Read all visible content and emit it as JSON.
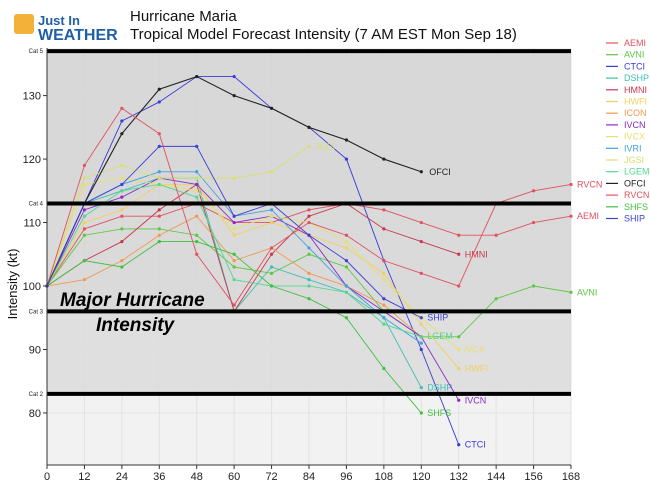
{
  "brand": {
    "line1": "Just In",
    "line2": "WEATHER"
  },
  "header": {
    "title": "Hurricane Maria",
    "subtitle": "Tropical Model Forecast Intensity (7 AM EST Mon Sep 18)"
  },
  "chart_data": {
    "type": "line",
    "title": "Hurricane Maria",
    "subtitle": "Tropical Model Forecast Intensity (7 AM EST Mon Sep 18)",
    "xlabel": "",
    "ylabel": "Intensity (kt)",
    "xlim": [
      0,
      168
    ],
    "ylim": [
      71.8,
      137.5
    ],
    "xticks": [
      0,
      12,
      24,
      36,
      48,
      60,
      72,
      84,
      96,
      108,
      120,
      132,
      144,
      156,
      168
    ],
    "yticks": [
      80,
      90,
      100,
      110,
      120,
      130
    ],
    "legend_position": "top-right",
    "shaded_bands": [
      {
        "from": 96,
        "to": 113
      },
      {
        "from": 83,
        "to": 96
      }
    ],
    "category_lines": [
      {
        "label": "Cat 5",
        "value": 137
      },
      {
        "label": "Cat 4",
        "value": 113
      },
      {
        "label": "Cat 3",
        "value": 96
      },
      {
        "label": "Cat 2",
        "value": 83
      }
    ],
    "annotations": [
      "Major Hurricane",
      "Intensity"
    ],
    "series": [
      {
        "name": "AEMI",
        "color": "#e0505e",
        "end_label": "AEMI",
        "x": [
          0,
          12,
          24,
          36,
          48,
          60,
          72,
          84,
          96,
          108,
          120,
          132,
          144,
          156,
          168
        ],
        "y": [
          100,
          109,
          111,
          111,
          113,
          110,
          110,
          112,
          113,
          112,
          110,
          108,
          108,
          110,
          111
        ]
      },
      {
        "name": "AVNI",
        "color": "#5cc840",
        "end_label": "AVNI",
        "x": [
          0,
          12,
          24,
          36,
          48,
          60,
          72,
          84,
          96,
          108,
          120,
          132,
          144,
          156,
          168
        ],
        "y": [
          100,
          108,
          109,
          109,
          108,
          103,
          102,
          105,
          103,
          96,
          92,
          92,
          98,
          100,
          99
        ]
      },
      {
        "name": "CTCI",
        "color": "#3a3ad8",
        "end_label": "CTCI",
        "x": [
          0,
          12,
          24,
          36,
          48,
          60,
          72,
          84,
          96,
          108,
          120,
          132
        ],
        "y": [
          100,
          113,
          126,
          129,
          133,
          133,
          128,
          125,
          120,
          104,
          90,
          75
        ]
      },
      {
        "name": "DSHP",
        "color": "#3cc0b4",
        "end_label": "DSHP",
        "x": [
          0,
          12,
          24,
          36,
          48,
          60,
          72,
          84,
          96,
          108,
          120
        ],
        "y": [
          100,
          113,
          115,
          117,
          117,
          96,
          103,
          101,
          99,
          95,
          84
        ]
      },
      {
        "name": "HMNI",
        "color": "#c8384c",
        "end_label": "HMNI",
        "x": [
          0,
          12,
          24,
          36,
          48,
          60,
          72,
          84,
          96,
          108,
          120,
          132
        ],
        "y": [
          100,
          104,
          107,
          112,
          116,
          96,
          105,
          111,
          113,
          109,
          107,
          105
        ]
      },
      {
        "name": "HWFI",
        "color": "#f0d060",
        "end_label": "HWFI",
        "x": [
          0,
          12,
          24,
          36,
          48,
          60,
          72,
          84,
          96,
          108,
          120,
          132
        ],
        "y": [
          100,
          110,
          112,
          116,
          116,
          108,
          110,
          108,
          106,
          102,
          94,
          87
        ]
      },
      {
        "name": "ICON",
        "color": "#f09a50",
        "end_label": "",
        "x": [
          0,
          12,
          24,
          36,
          48,
          60,
          72,
          84,
          96,
          108,
          120
        ],
        "y": [
          100,
          101,
          104,
          108,
          111,
          104,
          106,
          102,
          100,
          97,
          92
        ]
      },
      {
        "name": "IVCN",
        "color": "#8a2bc8",
        "end_label": "IVCN",
        "x": [
          0,
          12,
          24,
          36,
          48,
          60,
          72,
          84,
          96,
          108,
          120,
          132
        ],
        "y": [
          100,
          112,
          114,
          117,
          116,
          110,
          111,
          108,
          100,
          96,
          92,
          82
        ]
      },
      {
        "name": "IVCX",
        "color": "#e6e070",
        "end_label": "IVCX",
        "x": [
          0,
          12,
          24,
          36,
          48,
          60,
          72,
          84,
          96,
          108,
          120,
          132
        ],
        "y": [
          100,
          116,
          117,
          116,
          115,
          109,
          111,
          110,
          107,
          101,
          95,
          90
        ]
      },
      {
        "name": "IVRI",
        "color": "#40a0e0",
        "end_label": "",
        "x": [
          0,
          12,
          24,
          36,
          48,
          60,
          72,
          84,
          96,
          108,
          120
        ],
        "y": [
          100,
          113,
          116,
          118,
          118,
          111,
          112,
          106,
          100,
          95,
          91
        ]
      },
      {
        "name": "JGSI",
        "color": "#d6e070",
        "end_label": "JGSI",
        "x": [
          0,
          12,
          24,
          36,
          48,
          60,
          72,
          84
        ],
        "y": [
          100,
          117,
          119,
          117,
          117,
          117,
          118,
          122
        ]
      },
      {
        "name": "LGEM",
        "color": "#50d890",
        "end_label": "LGEM",
        "x": [
          0,
          12,
          24,
          36,
          48,
          60,
          72,
          84,
          96,
          108,
          120
        ],
        "y": [
          100,
          111,
          115,
          116,
          114,
          101,
          100,
          100,
          99,
          94,
          92
        ]
      },
      {
        "name": "OFCI",
        "color": "#222222",
        "end_label": "OFCI",
        "x": [
          0,
          12,
          24,
          36,
          48,
          60,
          72,
          84,
          96,
          108,
          120
        ],
        "y": [
          100,
          113,
          124,
          131,
          133,
          130,
          128,
          125,
          123,
          120,
          118
        ]
      },
      {
        "name": "RVCN",
        "color": "#e05060",
        "end_label": "RVCN",
        "x": [
          0,
          12,
          24,
          36,
          48,
          60,
          72,
          84,
          96,
          108,
          120,
          132,
          144,
          156,
          168
        ],
        "y": [
          100,
          119,
          128,
          124,
          105,
          97,
          106,
          110,
          108,
          104,
          102,
          100,
          113,
          115,
          116
        ]
      },
      {
        "name": "SHFS",
        "color": "#40c040",
        "end_label": "SHFS",
        "x": [
          0,
          12,
          24,
          36,
          48,
          60,
          72,
          84,
          96,
          108,
          120
        ],
        "y": [
          100,
          104,
          103,
          107,
          107,
          105,
          100,
          98,
          95,
          87,
          80
        ]
      },
      {
        "name": "SHIP",
        "color": "#4040d8",
        "end_label": "SHIP",
        "x": [
          0,
          12,
          24,
          36,
          48,
          60,
          72,
          84,
          96,
          108,
          120
        ],
        "y": [
          100,
          113,
          116,
          122,
          122,
          111,
          113,
          108,
          104,
          98,
          95
        ]
      }
    ]
  }
}
